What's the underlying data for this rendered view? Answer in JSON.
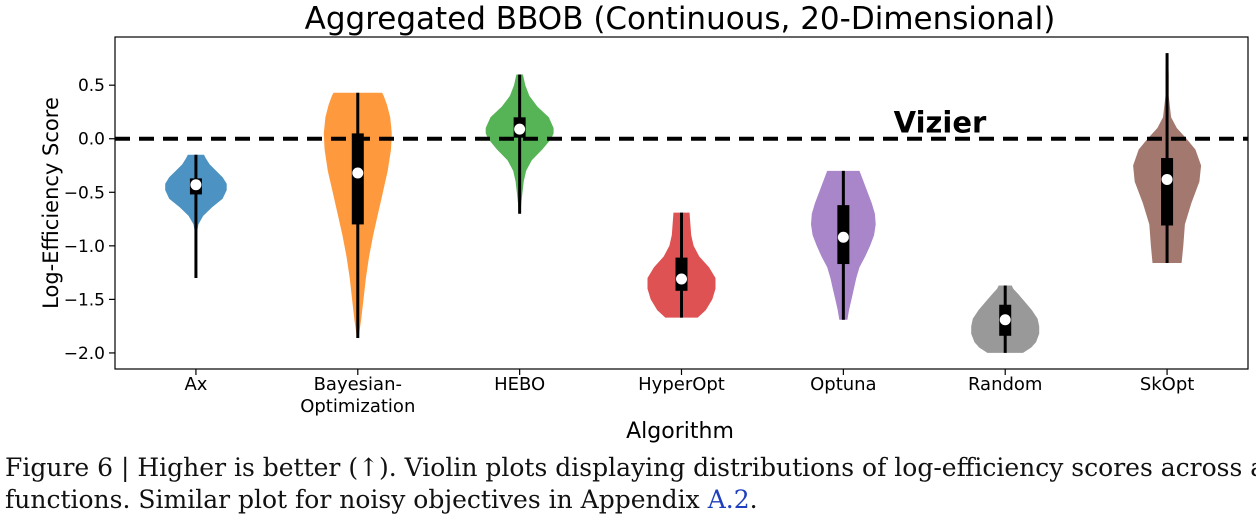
{
  "chart_data": {
    "type": "violin",
    "title": "Aggregated BBOB (Continuous, 20-Dimensional)",
    "xlabel": "Algorithm",
    "ylabel": "Log-Efficiency Score",
    "ylim": [
      -2.15,
      0.95
    ],
    "yticks": [
      0.5,
      0.0,
      -0.5,
      -1.0,
      -1.5,
      -2.0
    ],
    "ytick_labels": [
      "0.5",
      "0.0",
      "−0.5",
      "−1.0",
      "−1.5",
      "−2.0"
    ],
    "grid": false,
    "reference_line": {
      "value": 0.0,
      "label": "Vizier",
      "style": "dashed",
      "color": "#000000"
    },
    "series": [
      {
        "name": "Ax",
        "label_lines": [
          "Ax"
        ],
        "color": "#1f77b4",
        "min": -1.3,
        "max": -0.15,
        "q1": -0.52,
        "q3": -0.37,
        "median": -0.43,
        "profile": [
          [
            -1.3,
            0.002
          ],
          [
            -1.22,
            0.005
          ],
          [
            -1.12,
            0.004
          ],
          [
            -1.0,
            0.003
          ],
          [
            -0.9,
            0.006
          ],
          [
            -0.8,
            0.03
          ],
          [
            -0.72,
            0.09
          ],
          [
            -0.64,
            0.2
          ],
          [
            -0.56,
            0.33
          ],
          [
            -0.48,
            0.38
          ],
          [
            -0.42,
            0.38
          ],
          [
            -0.36,
            0.33
          ],
          [
            -0.3,
            0.25
          ],
          [
            -0.24,
            0.17
          ],
          [
            -0.18,
            0.12
          ],
          [
            -0.15,
            0.1
          ]
        ]
      },
      {
        "name": "Bayesian-Optimization",
        "label_lines": [
          "Bayesian-",
          "Optimization"
        ],
        "color": "#ff7f0e",
        "min": -1.86,
        "max": 0.43,
        "q1": -0.8,
        "q3": 0.05,
        "median": -0.32,
        "profile": [
          [
            -1.86,
            0.01
          ],
          [
            -1.7,
            0.04
          ],
          [
            -1.5,
            0.07
          ],
          [
            -1.3,
            0.1
          ],
          [
            -1.1,
            0.14
          ],
          [
            -0.9,
            0.19
          ],
          [
            -0.7,
            0.25
          ],
          [
            -0.5,
            0.31
          ],
          [
            -0.3,
            0.37
          ],
          [
            -0.1,
            0.41
          ],
          [
            0.05,
            0.42
          ],
          [
            0.2,
            0.4
          ],
          [
            0.32,
            0.36
          ],
          [
            0.4,
            0.32
          ],
          [
            0.43,
            0.3
          ]
        ]
      },
      {
        "name": "HEBO",
        "label_lines": [
          "HEBO"
        ],
        "color": "#2ca02c",
        "min": -0.7,
        "max": 0.6,
        "q1": 0.01,
        "q3": 0.2,
        "median": 0.09,
        "profile": [
          [
            -0.7,
            0.01
          ],
          [
            -0.6,
            0.02
          ],
          [
            -0.5,
            0.035
          ],
          [
            -0.4,
            0.05
          ],
          [
            -0.3,
            0.08
          ],
          [
            -0.2,
            0.15
          ],
          [
            -0.1,
            0.28
          ],
          [
            0.0,
            0.39
          ],
          [
            0.05,
            0.42
          ],
          [
            0.1,
            0.42
          ],
          [
            0.2,
            0.36
          ],
          [
            0.3,
            0.22
          ],
          [
            0.4,
            0.12
          ],
          [
            0.5,
            0.07
          ],
          [
            0.6,
            0.04
          ]
        ]
      },
      {
        "name": "HyperOpt",
        "label_lines": [
          "HyperOpt"
        ],
        "color": "#d62728",
        "min": -1.67,
        "max": -0.69,
        "q1": -1.42,
        "q3": -1.11,
        "median": -1.31,
        "profile": [
          [
            -1.67,
            0.2
          ],
          [
            -1.6,
            0.3
          ],
          [
            -1.5,
            0.38
          ],
          [
            -1.4,
            0.42
          ],
          [
            -1.3,
            0.42
          ],
          [
            -1.2,
            0.34
          ],
          [
            -1.1,
            0.22
          ],
          [
            -1.0,
            0.15
          ],
          [
            -0.9,
            0.12
          ],
          [
            -0.8,
            0.11
          ],
          [
            -0.7,
            0.1
          ],
          [
            -0.69,
            0.1
          ]
        ]
      },
      {
        "name": "Optuna",
        "label_lines": [
          "Optuna"
        ],
        "color": "#9467bd",
        "min": -1.69,
        "max": -0.3,
        "q1": -1.17,
        "q3": -0.62,
        "median": -0.92,
        "profile": [
          [
            -1.69,
            0.05
          ],
          [
            -1.6,
            0.07
          ],
          [
            -1.5,
            0.1
          ],
          [
            -1.4,
            0.13
          ],
          [
            -1.3,
            0.16
          ],
          [
            -1.2,
            0.2
          ],
          [
            -1.1,
            0.27
          ],
          [
            -1.0,
            0.33
          ],
          [
            -0.9,
            0.38
          ],
          [
            -0.8,
            0.4
          ],
          [
            -0.7,
            0.39
          ],
          [
            -0.6,
            0.35
          ],
          [
            -0.5,
            0.3
          ],
          [
            -0.4,
            0.25
          ],
          [
            -0.3,
            0.2
          ]
        ]
      },
      {
        "name": "Random",
        "label_lines": [
          "Random"
        ],
        "color": "#7f7f7f",
        "min": -2.0,
        "max": -1.37,
        "q1": -1.84,
        "q3": -1.55,
        "median": -1.69,
        "profile": [
          [
            -2.0,
            0.22
          ],
          [
            -1.95,
            0.32
          ],
          [
            -1.9,
            0.38
          ],
          [
            -1.82,
            0.42
          ],
          [
            -1.75,
            0.42
          ],
          [
            -1.68,
            0.4
          ],
          [
            -1.6,
            0.33
          ],
          [
            -1.52,
            0.24
          ],
          [
            -1.45,
            0.16
          ],
          [
            -1.4,
            0.1
          ],
          [
            -1.37,
            0.08
          ]
        ]
      },
      {
        "name": "SkOpt",
        "label_lines": [
          "SkOpt"
        ],
        "color": "#8c564b",
        "min": -1.16,
        "max": 0.8,
        "q1": -0.81,
        "q3": -0.18,
        "median": -0.38,
        "profile": [
          [
            -1.16,
            0.18
          ],
          [
            -1.0,
            0.2
          ],
          [
            -0.8,
            0.22
          ],
          [
            -0.6,
            0.3
          ],
          [
            -0.4,
            0.4
          ],
          [
            -0.25,
            0.42
          ],
          [
            -0.1,
            0.35
          ],
          [
            0.0,
            0.24
          ],
          [
            0.1,
            0.12
          ],
          [
            0.2,
            0.05
          ],
          [
            0.4,
            0.02
          ],
          [
            0.6,
            0.02
          ],
          [
            0.8,
            0.01
          ]
        ]
      }
    ]
  },
  "caption": {
    "figure_label": "Figure 6 | ",
    "line1_text": "Higher is better (↑). Violin plots displaying distributions of log-efficiency scores across all BBOB",
    "line2_text": "functions. Similar plot for noisy objectives in Appendix ",
    "appendix_link": "A.2",
    "line2_end": "."
  }
}
